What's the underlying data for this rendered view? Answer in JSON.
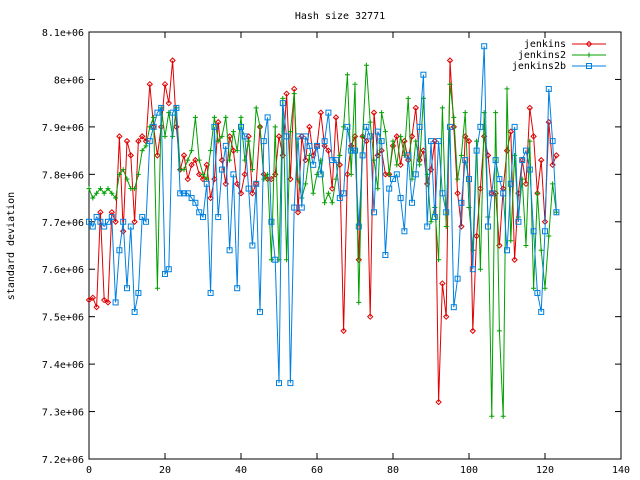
{
  "chart_data": {
    "type": "line",
    "title": "Hash size 32771",
    "xlabel": "",
    "ylabel": "standard deviation",
    "xlim": [
      0,
      140
    ],
    "ylim": [
      7200000,
      8100000
    ],
    "x_ticks": [
      "0",
      "20",
      "40",
      "60",
      "80",
      "100",
      "120",
      "140"
    ],
    "y_ticks": [
      "7.2e+06",
      "7.3e+06",
      "7.4e+06",
      "7.5e+06",
      "7.6e+06",
      "7.7e+06",
      "7.8e+06",
      "7.9e+06",
      "8e+06",
      "8.1e+06"
    ],
    "legend_position": "top-right",
    "grid": false,
    "series": [
      {
        "name": "jenkins",
        "color": "#e00000",
        "marker": "diamond",
        "values": [
          7535000,
          7540000,
          7520000,
          7720000,
          7535000,
          7530000,
          7720000,
          7700000,
          7880000,
          7680000,
          7870000,
          7840000,
          7700000,
          7870000,
          7880000,
          7870000,
          7990000,
          7900000,
          7840000,
          7900000,
          7990000,
          7950000,
          8040000,
          7900000,
          7810000,
          7840000,
          7790000,
          7820000,
          7830000,
          7800000,
          7790000,
          7820000,
          7750000,
          7790000,
          7910000,
          7830000,
          7780000,
          7880000,
          7850000,
          7780000,
          7760000,
          7800000,
          7880000,
          7760000,
          7780000,
          7900000,
          7800000,
          7790000,
          7790000,
          7800000,
          7880000,
          7840000,
          7970000,
          7790000,
          7980000,
          7720000,
          7880000,
          7830000,
          7900000,
          7840000,
          7860000,
          7930000,
          7860000,
          7850000,
          7770000,
          7920000,
          7820000,
          7470000,
          7800000,
          7860000,
          7880000,
          7620000,
          7880000,
          7870000,
          7500000,
          7930000,
          7840000,
          7850000,
          7800000,
          7800000,
          7860000,
          7880000,
          7820000,
          7870000,
          7830000,
          7880000,
          7940000,
          7830000,
          7850000,
          7780000,
          7810000,
          7870000,
          7320000,
          7570000,
          7500000,
          8040000,
          7900000,
          7760000,
          7690000,
          7880000,
          7870000,
          7470000,
          7670000,
          7770000,
          7880000,
          7840000,
          7760000,
          7760000,
          7650000,
          7770000,
          7850000,
          7890000,
          7620000,
          7760000,
          7830000,
          7780000,
          7940000,
          7880000,
          7760000,
          7830000,
          7700000,
          7910000,
          7820000,
          7840000
        ]
      },
      {
        "name": "jenkins2",
        "color": "#00a000",
        "marker": "plus",
        "values": [
          7770000,
          7750000,
          7760000,
          7770000,
          7760000,
          7770000,
          7760000,
          7750000,
          7800000,
          7810000,
          7790000,
          7770000,
          7770000,
          7800000,
          7850000,
          7860000,
          7900000,
          7920000,
          7560000,
          7940000,
          7880000,
          7930000,
          7880000,
          7940000,
          7810000,
          7810000,
          7830000,
          7850000,
          7920000,
          7830000,
          7800000,
          7790000,
          7850000,
          7920000,
          7870000,
          7880000,
          7920000,
          7830000,
          7890000,
          7850000,
          7920000,
          7830000,
          7870000,
          7810000,
          7940000,
          7900000,
          7790000,
          7800000,
          7620000,
          7900000,
          7620000,
          7960000,
          7620000,
          7890000,
          7970000,
          7790000,
          7750000,
          7780000,
          7840000,
          7760000,
          7800000,
          7830000,
          7740000,
          7760000,
          7740000,
          7790000,
          7840000,
          7900000,
          8010000,
          7800000,
          7990000,
          7530000,
          7880000,
          8030000,
          7910000,
          7830000,
          7770000,
          7930000,
          7890000,
          7800000,
          7870000,
          7820000,
          7880000,
          7840000,
          7960000,
          7790000,
          7870000,
          7820000,
          7960000,
          7800000,
          7700000,
          7730000,
          7620000,
          7940000,
          7690000,
          7990000,
          7920000,
          7790000,
          7840000,
          7930000,
          7730000,
          7640000,
          7870000,
          7600000,
          7930000,
          7710000,
          7290000,
          7930000,
          7470000,
          7290000,
          7980000,
          7660000,
          7840000,
          7710000,
          7790000,
          7650000,
          7870000,
          7560000,
          7760000,
          7640000,
          7560000,
          7670000,
          7780000,
          7720000
        ]
      },
      {
        "name": "jenkins2b",
        "color": "#0080e0",
        "marker": "square",
        "values": [
          7700000,
          7690000,
          7710000,
          7700000,
          7690000,
          7700000,
          7710000,
          7530000,
          7640000,
          7700000,
          7560000,
          7690000,
          7510000,
          7550000,
          7710000,
          7700000,
          7870000,
          7900000,
          7930000,
          7940000,
          7590000,
          7600000,
          7930000,
          7940000,
          7760000,
          7760000,
          7760000,
          7750000,
          7740000,
          7720000,
          7710000,
          7780000,
          7550000,
          7900000,
          7710000,
          7810000,
          7860000,
          7640000,
          7800000,
          7560000,
          7900000,
          7880000,
          7770000,
          7650000,
          7780000,
          7510000,
          7870000,
          7920000,
          7700000,
          7620000,
          7360000,
          7950000,
          7880000,
          7360000,
          7730000,
          7880000,
          7730000,
          7880000,
          7860000,
          7820000,
          7860000,
          7800000,
          7870000,
          7930000,
          7830000,
          7830000,
          7750000,
          7760000,
          7900000,
          7850000,
          7850000,
          7690000,
          7840000,
          7900000,
          7880000,
          7720000,
          7890000,
          7870000,
          7630000,
          7770000,
          7790000,
          7800000,
          7750000,
          7680000,
          7840000,
          7740000,
          7800000,
          7900000,
          8010000,
          7690000,
          7870000,
          7710000,
          7870000,
          7760000,
          7720000,
          7900000,
          7520000,
          7580000,
          7740000,
          7830000,
          7790000,
          7600000,
          7850000,
          7900000,
          8070000,
          7690000,
          7760000,
          7830000,
          7790000,
          7760000,
          7640000,
          7780000,
          7900000,
          7700000,
          7830000,
          7850000,
          7810000,
          7680000,
          7550000,
          7510000,
          7680000,
          7980000,
          7870000,
          7720000
        ]
      }
    ]
  }
}
